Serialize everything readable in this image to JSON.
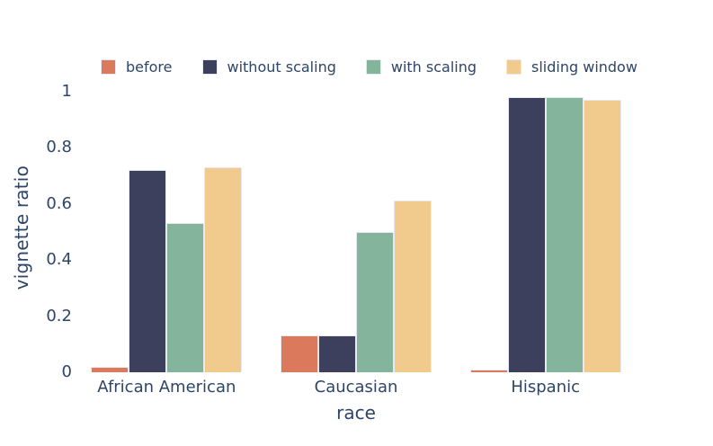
{
  "chart_data": {
    "type": "bar",
    "title": "",
    "xlabel": "race",
    "ylabel": "vignette ratio",
    "categories": [
      "African American",
      "Caucasian",
      "Hispanic"
    ],
    "series": [
      {
        "name": "before",
        "color": "#db795c",
        "values": [
          0.02,
          0.13,
          0.01
        ]
      },
      {
        "name": "without scaling",
        "color": "#3c405c",
        "values": [
          0.72,
          0.13,
          0.98
        ]
      },
      {
        "name": "with scaling",
        "color": "#84b49c",
        "values": [
          0.53,
          0.5,
          0.98
        ]
      },
      {
        "name": "sliding window",
        "color": "#f1cb8e",
        "values": [
          0.73,
          0.61,
          0.97
        ]
      }
    ],
    "ylim": [
      0,
      1
    ],
    "yticks": [
      0,
      0.2,
      0.4,
      0.6,
      0.8,
      1
    ],
    "ytick_labels": [
      "0",
      "0.2",
      "0.4",
      "0.6",
      "0.8",
      "1"
    ],
    "grid": false,
    "legend_position": "top",
    "background": "#ffffff",
    "text_color": "#2e4569",
    "bar_border_color": "#e9e9f2"
  }
}
